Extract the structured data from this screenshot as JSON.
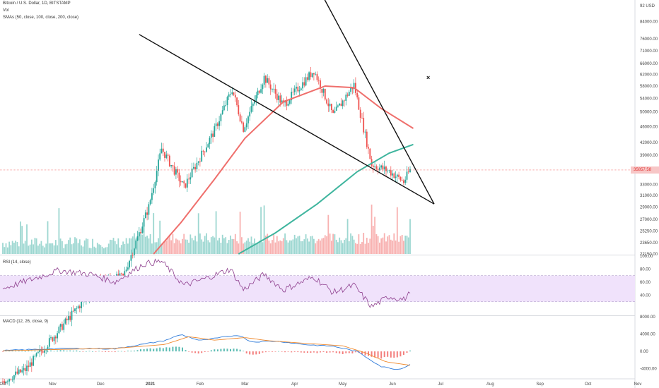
{
  "header": {
    "symbol_line": "Bitcoin / U.S. Dollar, 1D, BITSTAMP",
    "vol_label": "Vol",
    "sma_label": "SMAs (50, close, 100, close, 200, close)"
  },
  "rsi_panel": {
    "label": "RSI (14, close)"
  },
  "macd_panel": {
    "label": "MACD (12, 26, close, 9)"
  },
  "last_price": "35857.58",
  "close_glyph": "×",
  "colors": {
    "up": "#26a69a",
    "down": "#ef5350",
    "sma50": "#ef6f6c",
    "sma200": "#3fb59e",
    "rsi_line": "#8e3f8e",
    "rsi_band": "#f0e2fb",
    "macd_line": "#2f7bd9",
    "signal_line": "#f08a2e"
  },
  "chart_data": {
    "type": "line",
    "x_ticks": [
      "Oct",
      "Nov",
      "Dec",
      "2021",
      "Feb",
      "Mar",
      "Apr",
      "May",
      "Jun",
      "Jul",
      "Aug",
      "Sep",
      "Oct",
      "Nov"
    ],
    "price_axis": {
      "scale": "log",
      "ticks": [
        "92 USD",
        "84000.00",
        "76000.00",
        "71000.00",
        "66000.00",
        "62000.00",
        "58000.00",
        "54000.00",
        "50000.00",
        "46000.00",
        "42000.00",
        "39000.00",
        "33000.00",
        "31000.00",
        "29000.00",
        "27000.00",
        "25250.00",
        "23650.00",
        "22150.00"
      ]
    },
    "rsi_axis": {
      "ticks": [
        "100.00",
        "80.00",
        "60.00",
        "40.00"
      ],
      "band": [
        30,
        70
      ]
    },
    "macd_axis": {
      "ticks": [
        "8000.00",
        "4000.00",
        "0.00",
        "-4000.00"
      ]
    },
    "close_path": [
      [
        "2020-10-01",
        10700
      ],
      [
        "2020-10-15",
        11400
      ],
      [
        "2020-11-01",
        13700
      ],
      [
        "2020-11-15",
        16000
      ],
      [
        "2020-12-01",
        19000
      ],
      [
        "2020-12-15",
        19400
      ],
      [
        "2020-12-31",
        29000
      ],
      [
        "2021-01-08",
        40500
      ],
      [
        "2021-01-22",
        32500
      ],
      [
        "2021-02-10",
        45000
      ],
      [
        "2021-02-21",
        57000
      ],
      [
        "2021-02-28",
        45500
      ],
      [
        "2021-03-13",
        61000
      ],
      [
        "2021-03-25",
        52000
      ],
      [
        "2021-04-13",
        63500
      ],
      [
        "2021-04-25",
        49000
      ],
      [
        "2021-05-08",
        58500
      ],
      [
        "2021-05-19",
        37000
      ],
      [
        "2021-05-30",
        35600
      ],
      [
        "2021-06-08",
        33500
      ],
      [
        "2021-06-12",
        35858
      ]
    ],
    "series": [
      {
        "name": "SMA 50",
        "points": [
          [
            "2021-01-03",
            22150
          ],
          [
            "2021-01-20",
            26500
          ],
          [
            "2021-02-10",
            34000
          ],
          [
            "2021-03-01",
            43000
          ],
          [
            "2021-03-25",
            53000
          ],
          [
            "2021-04-20",
            58000
          ],
          [
            "2021-05-08",
            57500
          ],
          [
            "2021-05-25",
            51000
          ],
          [
            "2021-06-14",
            45500
          ]
        ]
      },
      {
        "name": "SMA 200",
        "points": [
          [
            "2021-02-25",
            22150
          ],
          [
            "2021-03-20",
            25000
          ],
          [
            "2021-04-15",
            29500
          ],
          [
            "2021-05-10",
            35500
          ],
          [
            "2021-05-30",
            39500
          ],
          [
            "2021-06-14",
            41500
          ]
        ]
      }
    ],
    "trendlines": [
      {
        "from": [
          "2020-12-25",
          78000
        ],
        "to": [
          "2021-06-27",
          29500
        ]
      },
      {
        "from": [
          "2021-04-14",
          105000
        ],
        "to": [
          "2021-06-27",
          29500
        ]
      }
    ],
    "rsi": [
      [
        "2020-10-01",
        50
      ],
      [
        "2020-10-20",
        65
      ],
      [
        "2020-11-05",
        78
      ],
      [
        "2020-11-25",
        72
      ],
      [
        "2020-12-10",
        60
      ],
      [
        "2020-12-28",
        88
      ],
      [
        "2021-01-08",
        92
      ],
      [
        "2021-01-22",
        55
      ],
      [
        "2021-02-05",
        66
      ],
      [
        "2021-02-20",
        80
      ],
      [
        "2021-02-28",
        48
      ],
      [
        "2021-03-13",
        72
      ],
      [
        "2021-03-25",
        48
      ],
      [
        "2021-04-13",
        68
      ],
      [
        "2021-04-25",
        44
      ],
      [
        "2021-05-08",
        55
      ],
      [
        "2021-05-19",
        22
      ],
      [
        "2021-05-30",
        38
      ],
      [
        "2021-06-08",
        33
      ],
      [
        "2021-06-12",
        43
      ]
    ],
    "macd": [
      [
        "2020-10-01",
        200
      ],
      [
        "2020-11-10",
        700
      ],
      [
        "2020-12-10",
        600
      ],
      [
        "2021-01-10",
        2500
      ],
      [
        "2021-01-20",
        3900
      ],
      [
        "2021-02-01",
        2500
      ],
      [
        "2021-02-25",
        3800
      ],
      [
        "2021-03-05",
        2200
      ],
      [
        "2021-03-20",
        2400
      ],
      [
        "2021-04-10",
        1500
      ],
      [
        "2021-04-25",
        1200
      ],
      [
        "2021-05-10",
        0
      ],
      [
        "2021-05-25",
        -3500
      ],
      [
        "2021-06-05",
        -4200
      ],
      [
        "2021-06-12",
        -3000
      ]
    ],
    "signal": [
      [
        "2020-10-01",
        150
      ],
      [
        "2020-11-10",
        500
      ],
      [
        "2020-12-10",
        700
      ],
      [
        "2021-01-10",
        1600
      ],
      [
        "2021-01-25",
        3400
      ],
      [
        "2021-02-10",
        2600
      ],
      [
        "2021-03-01",
        3200
      ],
      [
        "2021-03-15",
        2500
      ],
      [
        "2021-04-10",
        1800
      ],
      [
        "2021-05-01",
        1300
      ],
      [
        "2021-05-15",
        -300
      ],
      [
        "2021-05-28",
        -2400
      ],
      [
        "2021-06-12",
        -3200
      ]
    ],
    "ylim_rsi": [
      10,
      100
    ],
    "ylim_macd": [
      -6000,
      8000
    ],
    "grid": false,
    "legend": "top-left"
  }
}
